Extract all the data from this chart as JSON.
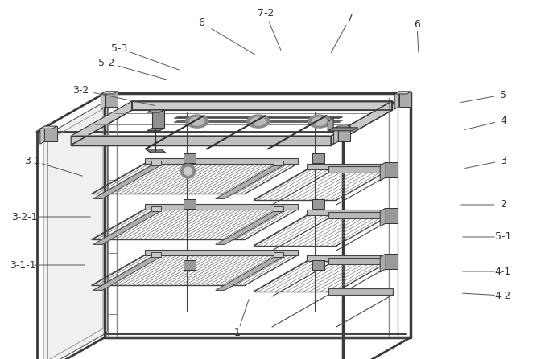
{
  "bg_color": "#ffffff",
  "fig_width": 6.82,
  "fig_height": 4.47,
  "frame_color": "#3a3a3a",
  "inner_color": "#555555",
  "light_color": "#888888",
  "very_light": "#aaaaaa",
  "tan_color": "#c8b870"
}
